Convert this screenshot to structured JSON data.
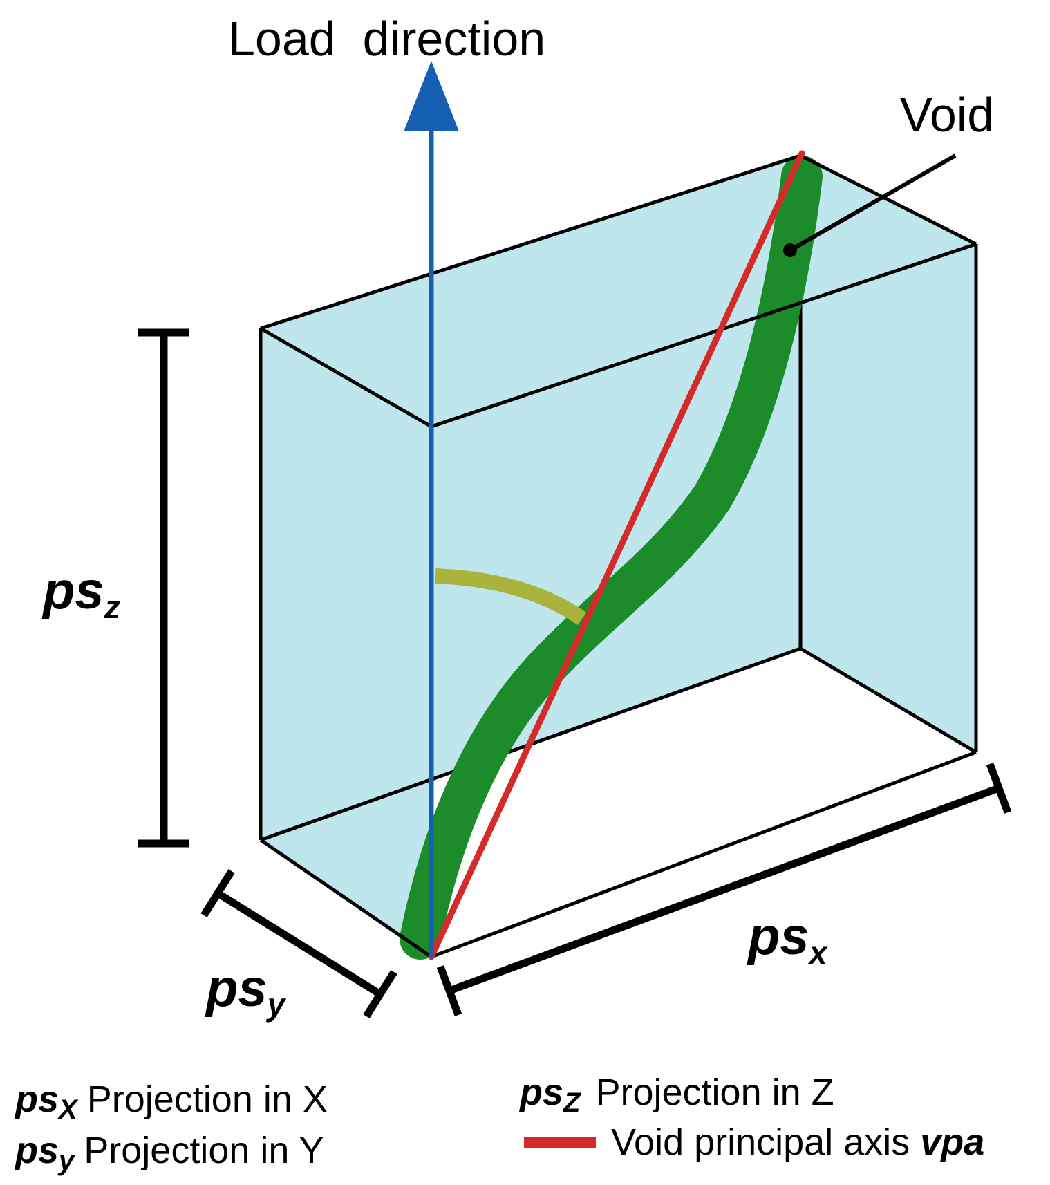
{
  "labels": {
    "load_direction": "Load  direction",
    "void": "Void"
  },
  "dimensions": {
    "psx": {
      "base": "ps",
      "sub": "x"
    },
    "psy": {
      "base": "ps",
      "sub": "y"
    },
    "psz": {
      "base": "ps",
      "sub": "z"
    }
  },
  "legend": {
    "psx": {
      "base": "ps",
      "sub": "X",
      "text": "Projection in X"
    },
    "psy": {
      "base": "ps",
      "sub": "y",
      "text": "Projection in Y"
    },
    "psz": {
      "base": "ps",
      "sub": "Z",
      "text": "Projection in Z"
    },
    "vpa": {
      "text": "Void principal axis ",
      "symbol": "vpa"
    }
  },
  "colors": {
    "box_fill": "#bfe6ec",
    "edges": "#000000",
    "load_arrow": "#1560b0",
    "void": "#1c8c2a",
    "principal_axis": "#d42a2a",
    "angle_arc": "#aab43c"
  }
}
